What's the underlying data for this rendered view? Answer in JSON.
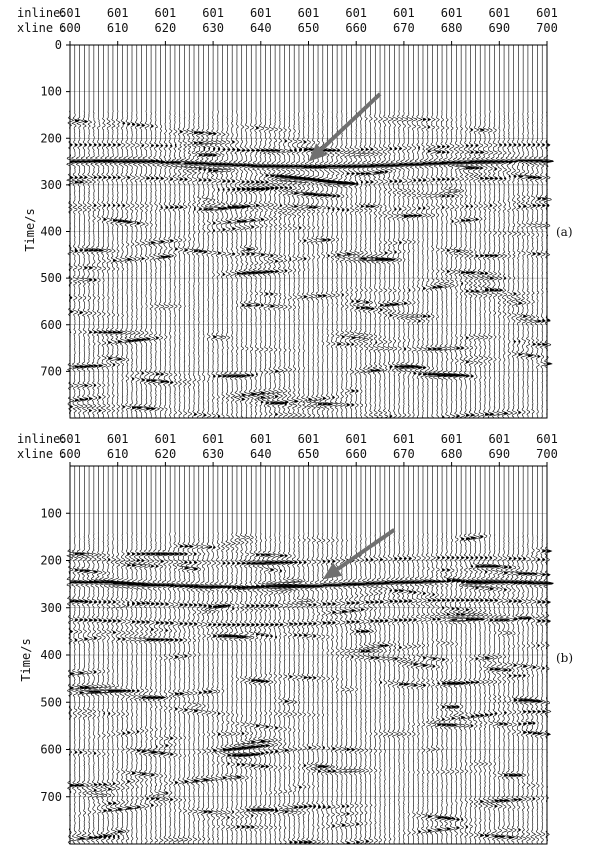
{
  "chart_data": [
    {
      "type": "seismic-wiggle",
      "panel_label": "(a)",
      "header_rows": [
        {
          "label": "inline",
          "values": [
            "601",
            "601",
            "601",
            "601",
            "601",
            "601",
            "601",
            "601",
            "601",
            "601",
            "601"
          ]
        },
        {
          "label": "xline",
          "values": [
            "600",
            "610",
            "620",
            "630",
            "640",
            "650",
            "660",
            "670",
            "680",
            "690",
            "700"
          ]
        }
      ],
      "ylabel": "Time/s",
      "yticks": [
        0,
        100,
        200,
        300,
        400,
        500,
        600,
        700
      ],
      "ylim": [
        0,
        800
      ],
      "xlim": [
        600,
        700
      ],
      "arrow": {
        "tip": {
          "xline": 650,
          "time": 250
        },
        "tail": {
          "xline": 665,
          "time": 105
        }
      },
      "reflectors": [
        {
          "time": 255,
          "strength": 1.0
        },
        {
          "time": 220,
          "strength": 0.4
        },
        {
          "time": 290,
          "strength": 0.45
        },
        {
          "time": 350,
          "strength": 0.35
        }
      ]
    },
    {
      "type": "seismic-wiggle",
      "panel_label": "(b)",
      "header_rows": [
        {
          "label": "inline",
          "values": [
            "601",
            "601",
            "601",
            "601",
            "601",
            "601",
            "601",
            "601",
            "601",
            "601",
            "601"
          ]
        },
        {
          "label": "xline",
          "values": [
            "600",
            "610",
            "620",
            "630",
            "640",
            "650",
            "660",
            "670",
            "680",
            "690",
            "700"
          ]
        }
      ],
      "ylabel": "Time/s",
      "yticks": [
        100,
        200,
        300,
        400,
        500,
        600,
        700
      ],
      "ylim": [
        0,
        800
      ],
      "xlim": [
        600,
        700
      ],
      "arrow": {
        "tip": {
          "xline": 653,
          "time": 240
        },
        "tail": {
          "xline": 668,
          "time": 135
        }
      },
      "reflectors": [
        {
          "time": 250,
          "strength": 1.0
        },
        {
          "time": 200,
          "strength": 0.4
        },
        {
          "time": 290,
          "strength": 0.5
        },
        {
          "time": 330,
          "strength": 0.5
        }
      ]
    }
  ],
  "colors": {
    "trace": "#000000",
    "arrow": "#707070",
    "grid": "#555555"
  }
}
